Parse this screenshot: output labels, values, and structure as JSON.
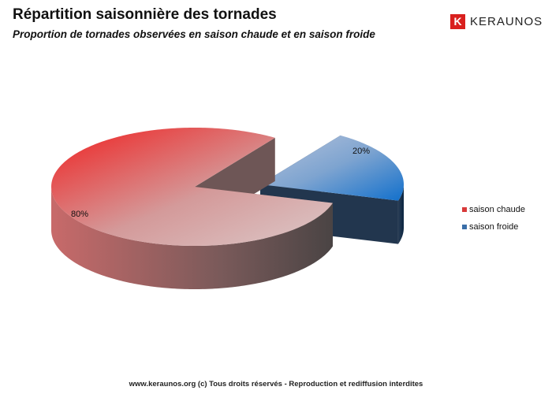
{
  "header": {
    "title": "Répartition saisonnière des tornades",
    "subtitle": "Proportion de tornades observées en saison chaude et en saison froide",
    "logo_text": "KERAUNOS"
  },
  "chart_data": {
    "type": "pie",
    "title": "Répartition saisonnière des tornades",
    "subtitle": "Proportion de tornades observées en saison chaude et en saison froide",
    "categories": [
      "saison chaude",
      "saison froide"
    ],
    "values": [
      80,
      20
    ],
    "data_labels": [
      "80%",
      "20%"
    ],
    "colors": [
      "#e83232",
      "#1f6fc4"
    ],
    "exploded": "saison froide",
    "legend_position": "right"
  },
  "footer": {
    "text": "www.keraunos.org   (c) Tous droits réservés - Reproduction et rediffusion interdites"
  }
}
